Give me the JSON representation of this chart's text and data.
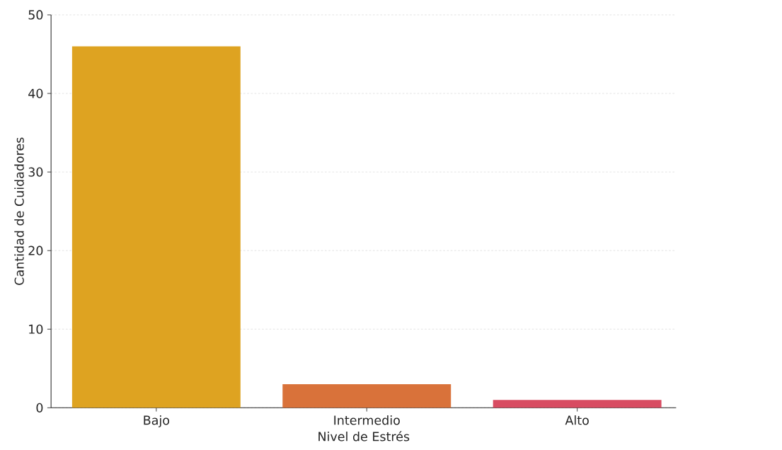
{
  "chart_data": {
    "type": "bar",
    "xlabel": "Nivel de Estrés",
    "ylabel": "Cantidad de Cuidadores",
    "categories": [
      "Bajo",
      "Intermedio",
      "Alto"
    ],
    "values": [
      46,
      3,
      1
    ],
    "colors": [
      "#dea321",
      "#d9723a",
      "#d84c62"
    ],
    "ylim": [
      0,
      50
    ],
    "yticks": [
      0,
      10,
      20,
      30,
      40,
      50
    ],
    "grid": "y"
  }
}
